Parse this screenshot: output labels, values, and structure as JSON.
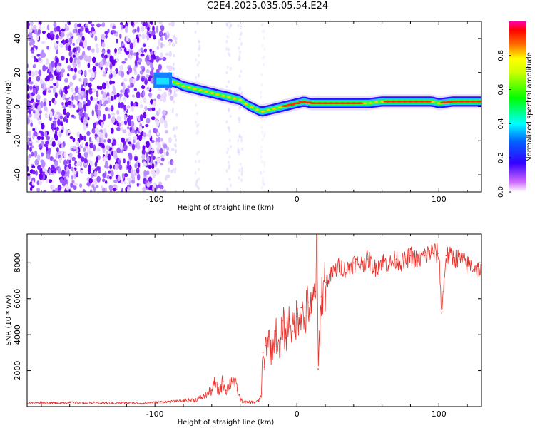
{
  "title": "C2E4.2025.035.05.54.E24",
  "charts": [
    {
      "type": "heatmap",
      "xlabel": "Height of straight line (km)",
      "ylabel": "Frequency (Hz)",
      "xlim": [
        -190,
        130
      ],
      "ylim": [
        -50,
        50
      ],
      "xticks": [
        -100,
        0,
        100
      ],
      "xtick_labels": [
        "-100",
        "0",
        "100"
      ],
      "yticks": [
        -40,
        -20,
        0,
        20,
        40
      ],
      "ytick_labels": [
        "-40",
        "-20",
        "0",
        "20",
        "40"
      ],
      "colorbar": {
        "label": "Normalized spectral amplitude",
        "ticks": [
          0.0,
          0.2,
          0.4,
          0.6,
          0.8
        ],
        "tick_labels": [
          "0.0",
          "0.2",
          "0.4",
          "0.6",
          "0.8"
        ],
        "range": [
          0,
          1
        ]
      },
      "ridge": {
        "x": [
          -100,
          -95,
          -90,
          -85,
          -80,
          -75,
          -70,
          -65,
          -60,
          -55,
          -50,
          -45,
          -40,
          -35,
          -30,
          -25,
          -20,
          -15,
          -10,
          -5,
          0,
          5,
          10,
          20,
          30,
          40,
          50,
          60,
          70,
          80,
          90,
          95,
          100,
          110,
          120,
          130
        ],
        "y": [
          15,
          16,
          15,
          14,
          12,
          11,
          10,
          9,
          8,
          7,
          6,
          5,
          4,
          1,
          -1,
          -3,
          -2,
          -1,
          0,
          1,
          2,
          3,
          2,
          2,
          2,
          2,
          2,
          3,
          3,
          3,
          3,
          3,
          2,
          3,
          3,
          3
        ]
      }
    },
    {
      "type": "line",
      "xlabel": "Height of straight line (km)",
      "ylabel": "SNR (10 * v/v)",
      "xlim": [
        -190,
        130
      ],
      "ylim": [
        0,
        9600
      ],
      "xticks": [
        -100,
        0,
        100
      ],
      "xtick_labels": [
        "-100",
        "0",
        "100"
      ],
      "yticks": [
        2000,
        4000,
        6000,
        8000
      ],
      "ytick_labels": [
        "2000",
        "4000",
        "6000",
        "8000"
      ],
      "series": [
        {
          "color": "#e8302a",
          "x": [
            -190,
            -180,
            -170,
            -160,
            -150,
            -140,
            -130,
            -120,
            -110,
            -100,
            -90,
            -85,
            -80,
            -75,
            -70,
            -65,
            -60,
            -58,
            -55,
            -52,
            -50,
            -45,
            -42,
            -40,
            -37,
            -35,
            -30,
            -27,
            -25,
            -24,
            -23,
            -22,
            -20,
            -18,
            -15,
            -12,
            -10,
            -8,
            -5,
            -3,
            0,
            3,
            5,
            8,
            10,
            13,
            14,
            15,
            17,
            20,
            25,
            30,
            35,
            40,
            45,
            50,
            55,
            60,
            65,
            70,
            75,
            80,
            85,
            90,
            95,
            100,
            102,
            105,
            110,
            115,
            120,
            125,
            130
          ],
          "y": [
            200,
            220,
            190,
            230,
            200,
            210,
            190,
            210,
            180,
            230,
            280,
            300,
            320,
            350,
            400,
            600,
            900,
            1300,
            800,
            1400,
            900,
            1600,
            900,
            400,
            250,
            240,
            250,
            300,
            700,
            3000,
            2200,
            3400,
            3900,
            3000,
            4200,
            2800,
            4800,
            3800,
            5000,
            4200,
            5000,
            5500,
            4600,
            5800,
            5200,
            6400,
            9600,
            2100,
            6100,
            6900,
            7400,
            7800,
            7600,
            8000,
            7900,
            8200,
            7700,
            8100,
            7900,
            8200,
            8000,
            8400,
            8100,
            8400,
            8600,
            8500,
            5200,
            8400,
            8300,
            8200,
            7900,
            7800,
            7500
          ]
        }
      ]
    }
  ]
}
